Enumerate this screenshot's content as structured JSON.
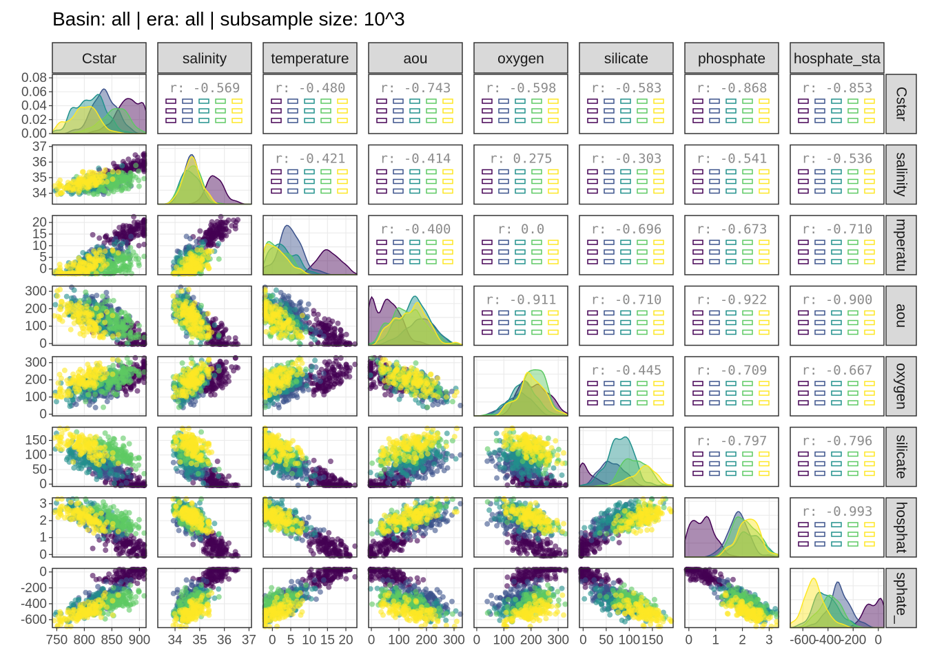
{
  "title": "Basin: all | era: all | subsample size: 10^3",
  "colors": {
    "panel_border": "#333333",
    "strip_fill": "#d9d9d9",
    "grid": "#ebebeb",
    "viridis": [
      "#440154",
      "#3b528b",
      "#21908c",
      "#5dc963",
      "#fde725"
    ]
  },
  "chart_data": {
    "type": "scatter",
    "layout": "pairs-matrix",
    "title": "Basin: all | era: all | subsample size: 10^3",
    "variables": [
      {
        "name": "Cstar",
        "label": "Cstar",
        "row_label": "Cstar",
        "range": [
          742,
          912
        ],
        "ticks": [
          750,
          800,
          850,
          900
        ],
        "tick_labels": [
          "750",
          "800",
          "850",
          "900"
        ]
      },
      {
        "name": "salinity",
        "label": "salinity",
        "row_label": "salinity",
        "range": [
          33.3,
          37.1
        ],
        "ticks": [
          34,
          35,
          36,
          37
        ],
        "tick_labels": [
          "34",
          "35",
          "36",
          "37"
        ]
      },
      {
        "name": "temperature",
        "label": "temperature",
        "row_label": "mperatu",
        "range": [
          -2.5,
          23
        ],
        "ticks": [
          0,
          5,
          10,
          15,
          20
        ],
        "tick_labels": [
          "0",
          "5",
          "10",
          "15",
          "20"
        ]
      },
      {
        "name": "aou",
        "label": "aou",
        "row_label": "aou",
        "range": [
          -10,
          330
        ],
        "ticks": [
          0,
          100,
          200,
          300
        ],
        "tick_labels": [
          "0",
          "100",
          "200",
          "300"
        ]
      },
      {
        "name": "oxygen",
        "label": "oxygen",
        "row_label": "oxygen",
        "range": [
          -10,
          335
        ],
        "ticks": [
          0,
          100,
          200,
          300
        ],
        "tick_labels": [
          "0",
          "100",
          "200",
          "300"
        ]
      },
      {
        "name": "silicate",
        "label": "silicate",
        "row_label": "silicate",
        "range": [
          -8,
          195
        ],
        "ticks": [
          0,
          50,
          100,
          150
        ],
        "tick_labels": [
          "0",
          "50",
          "100",
          "150"
        ]
      },
      {
        "name": "phosphate",
        "label": "phosphate",
        "row_label": "hosphat",
        "range": [
          -0.15,
          3.35
        ],
        "ticks": [
          0,
          1,
          2,
          3
        ],
        "tick_labels": [
          "0",
          "1",
          "2",
          "3"
        ]
      },
      {
        "name": "phosphate_star",
        "label": "hosphate_sta",
        "row_label": "sphate_",
        "range": [
          -700,
          45
        ],
        "ticks": [
          -600,
          -400,
          -200,
          0
        ],
        "tick_labels": [
          "-600",
          "-400",
          "-200",
          "0"
        ]
      }
    ],
    "diag_y_axis": {
      "ticks": [
        0,
        0.02,
        0.04,
        0.06,
        0.08
      ],
      "tick_labels": [
        "0.00",
        "0.02",
        "0.04",
        "0.06",
        "0.08"
      ],
      "range": [
        0,
        0.085
      ]
    },
    "correlations": [
      {
        "row": 0,
        "col": 1,
        "text": "r:  -0.569"
      },
      {
        "row": 0,
        "col": 2,
        "text": "r:  -0.480"
      },
      {
        "row": 0,
        "col": 3,
        "text": "r:  -0.743"
      },
      {
        "row": 0,
        "col": 4,
        "text": "r:  -0.598"
      },
      {
        "row": 0,
        "col": 5,
        "text": "r:  -0.583"
      },
      {
        "row": 0,
        "col": 6,
        "text": "r:  -0.868"
      },
      {
        "row": 0,
        "col": 7,
        "text": "r:  -0.853"
      },
      {
        "row": 1,
        "col": 2,
        "text": "r:  -0.421"
      },
      {
        "row": 1,
        "col": 3,
        "text": "r:  -0.414"
      },
      {
        "row": 1,
        "col": 4,
        "text": "r:  0.275"
      },
      {
        "row": 1,
        "col": 5,
        "text": "r:  -0.303"
      },
      {
        "row": 1,
        "col": 6,
        "text": "r:  -0.541"
      },
      {
        "row": 1,
        "col": 7,
        "text": "r:  -0.536"
      },
      {
        "row": 2,
        "col": 3,
        "text": "r:  -0.400"
      },
      {
        "row": 2,
        "col": 4,
        "text": "r:  0.0"
      },
      {
        "row": 2,
        "col": 5,
        "text": "r:  -0.696"
      },
      {
        "row": 2,
        "col": 6,
        "text": "r:  -0.673"
      },
      {
        "row": 2,
        "col": 7,
        "text": "r:  -0.710"
      },
      {
        "row": 3,
        "col": 4,
        "text": "r:  -0.911"
      },
      {
        "row": 3,
        "col": 5,
        "text": "r:  -0.710"
      },
      {
        "row": 3,
        "col": 6,
        "text": "r:  -0.922"
      },
      {
        "row": 3,
        "col": 7,
        "text": "r:  -0.900"
      },
      {
        "row": 4,
        "col": 5,
        "text": "r:  -0.445"
      },
      {
        "row": 4,
        "col": 6,
        "text": "r:  -0.709"
      },
      {
        "row": 4,
        "col": 7,
        "text": "r:  -0.667"
      },
      {
        "row": 5,
        "col": 6,
        "text": "r:  -0.797"
      },
      {
        "row": 5,
        "col": 7,
        "text": "r:  -0.796"
      },
      {
        "row": 6,
        "col": 7,
        "text": "r:  -0.993"
      }
    ],
    "groups": [
      {
        "color": "#440154",
        "Cstar": 878,
        "salinity": 35.6,
        "temperature": 15,
        "aou": 60,
        "oxygen": 200,
        "silicate": 8,
        "phosphate": 0.6,
        "phosphate_star": -40
      },
      {
        "color": "#3b528b",
        "Cstar": 835,
        "salinity": 34.6,
        "temperature": 5,
        "aou": 180,
        "oxygen": 150,
        "silicate": 60,
        "phosphate": 1.9,
        "phosphate_star": -320
      },
      {
        "color": "#21908c",
        "Cstar": 812,
        "salinity": 34.6,
        "temperature": 3,
        "aou": 150,
        "oxygen": 170,
        "silicate": 80,
        "phosphate": 2.2,
        "phosphate_star": -420
      },
      {
        "color": "#5dc963",
        "Cstar": 855,
        "salinity": 34.7,
        "temperature": 1.5,
        "aou": 130,
        "oxygen": 210,
        "silicate": 110,
        "phosphate": 2.1,
        "phosphate_star": -380
      },
      {
        "color": "#fde725",
        "Cstar": 800,
        "salinity": 34.7,
        "temperature": 1,
        "aou": 140,
        "oxygen": 200,
        "silicate": 130,
        "phosphate": 2.2,
        "phosphate_star": -500
      }
    ],
    "points_per_group": 120,
    "grid": true,
    "legend": "none"
  }
}
